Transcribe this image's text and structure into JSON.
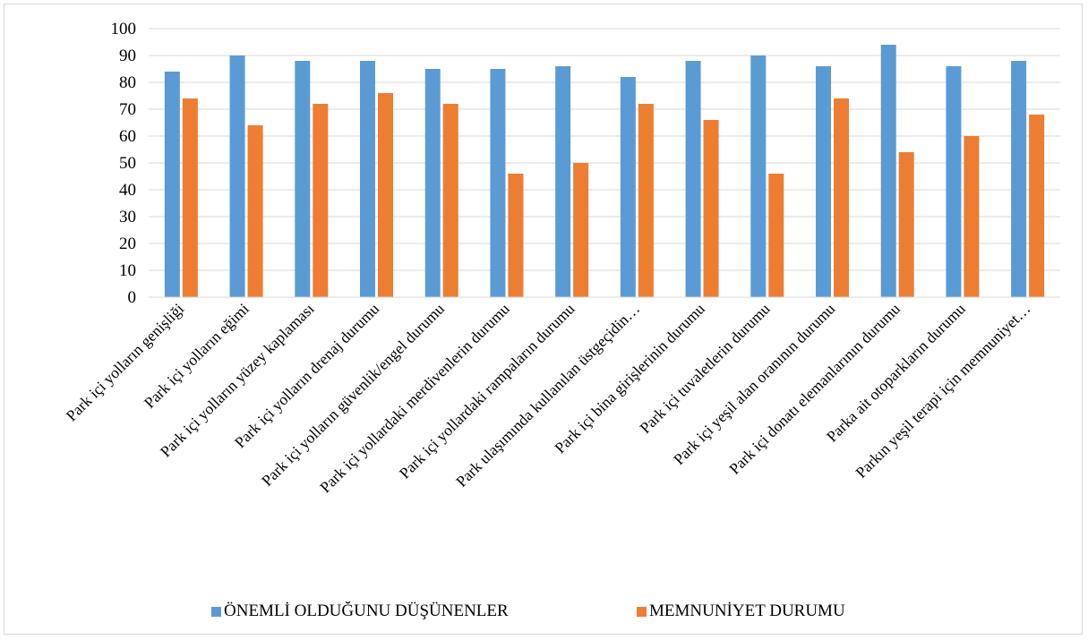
{
  "chart_data": {
    "type": "bar",
    "categories": [
      "Park içi yolların genişliği",
      "Park içi yolların eğimi",
      "Park içi yolların yüzey kaplaması",
      "Park içi yolların drenaj durumu",
      "Park içi yolların güvenlik/engel durumu",
      "Park içi yollardaki merdivenlerin durumu",
      "Park içi yollardaki rampaların durumu",
      "Park ulaşımında kullanılan üstgeçidin…",
      "Park içi bina girişlerinin durumu",
      "Park içi tuvaletlerin durumu",
      "Park içi yeşil alan oranının durumu",
      "Park içi donatı elemanlarının durumu",
      "Parka ait otoparkların durumu",
      "Parkın yeşil terapi için memnuniyet…"
    ],
    "series": [
      {
        "name": "ÖNEMLİ OLDUĞUNU DÜŞÜNENLER",
        "color": "#5b9bd5",
        "values": [
          84,
          90,
          88,
          88,
          85,
          85,
          86,
          82,
          88,
          90,
          86,
          94,
          86,
          88
        ]
      },
      {
        "name": "MEMNUNİYET DURUMU",
        "color": "#ed7d31",
        "values": [
          74,
          64,
          72,
          76,
          72,
          46,
          50,
          72,
          66,
          46,
          74,
          54,
          60,
          68
        ]
      }
    ],
    "title": "",
    "xlabel": "",
    "ylabel": "",
    "ylim": [
      0,
      100
    ],
    "yticks": [
      0,
      10,
      20,
      30,
      40,
      50,
      60,
      70,
      80,
      90,
      100
    ],
    "grid": true,
    "gridColor": "#d9d9d9",
    "legend": "bottom"
  }
}
